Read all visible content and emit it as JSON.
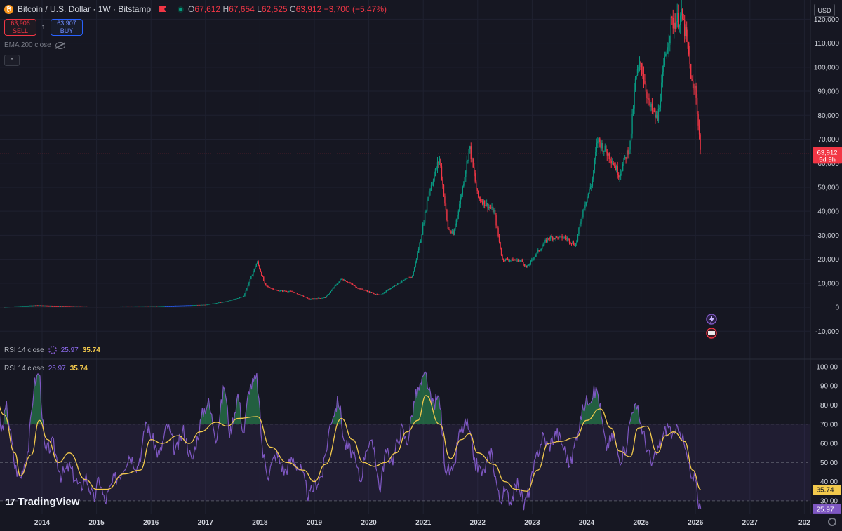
{
  "header": {
    "coin_icon_glyph": "₿",
    "title": "Bitcoin / U.S. Dollar · 1W · Bitstamp",
    "open_label": "O",
    "open": "67,612",
    "high_label": "H",
    "high": "67,654",
    "low_label": "L",
    "low": "62,525",
    "close_label": "C",
    "close": "63,912",
    "change": "−3,700 (−5.47%)"
  },
  "trade": {
    "sell_price": "63,906",
    "sell_label": "SELL",
    "spread": "1",
    "buy_price": "63,907",
    "buy_label": "BUY"
  },
  "ema_label": "EMA 200 close",
  "collapse_glyph": "^",
  "currency": "USD",
  "price_badge": {
    "price": "63,912",
    "countdown": "5d 9h"
  },
  "rsi_header": {
    "label": "RSI 14 close",
    "rsi": "25.97",
    "ma": "35.74"
  },
  "brand": "TradingView",
  "colors": {
    "up": "#089981",
    "down": "#f23645",
    "rsi": "#7e57c2",
    "rsi_ma": "#f2c94c",
    "band": "#7e57c2",
    "price_line": "#f23645"
  },
  "chart_data": [
    {
      "type": "candlestick",
      "title": "Bitcoin / U.S. Dollar · 1W · Bitstamp",
      "x_ticks": [
        "2014",
        "2015",
        "2016",
        "2017",
        "2018",
        "2019",
        "2020",
        "2021",
        "2022",
        "2023",
        "2024",
        "2025",
        "2026",
        "2027",
        "202"
      ],
      "y_ticks": [
        "-10,000",
        "0",
        "10,000",
        "20,000",
        "30,000",
        "40,000",
        "50,000",
        "60,000",
        "70,000",
        "80,000",
        "90,000",
        "100,000",
        "110,000",
        "120,000"
      ],
      "ylim": [
        -14000,
        128000
      ],
      "last_price": 63912,
      "price_path": [
        [
          2013.3,
          120
        ],
        [
          2013.9,
          800
        ],
        [
          2014.2,
          600
        ],
        [
          2015.0,
          250
        ],
        [
          2016.0,
          400
        ],
        [
          2016.5,
          650
        ],
        [
          2017.0,
          1000
        ],
        [
          2017.4,
          2500
        ],
        [
          2017.7,
          4500
        ],
        [
          2017.95,
          19000
        ],
        [
          2018.1,
          9000
        ],
        [
          2018.3,
          7000
        ],
        [
          2018.6,
          6500
        ],
        [
          2018.9,
          3500
        ],
        [
          2019.2,
          4000
        ],
        [
          2019.5,
          12000
        ],
        [
          2019.8,
          8000
        ],
        [
          2020.2,
          5000
        ],
        [
          2020.5,
          9500
        ],
        [
          2020.8,
          13000
        ],
        [
          2020.95,
          28000
        ],
        [
          2021.1,
          48000
        ],
        [
          2021.3,
          62000
        ],
        [
          2021.45,
          33000
        ],
        [
          2021.55,
          30000
        ],
        [
          2021.7,
          47000
        ],
        [
          2021.85,
          67000
        ],
        [
          2022.0,
          46000
        ],
        [
          2022.3,
          40000
        ],
        [
          2022.45,
          20000
        ],
        [
          2022.8,
          19500
        ],
        [
          2022.9,
          16500
        ],
        [
          2023.1,
          23000
        ],
        [
          2023.3,
          29000
        ],
        [
          2023.6,
          29000
        ],
        [
          2023.8,
          26000
        ],
        [
          2023.95,
          42000
        ],
        [
          2024.1,
          52000
        ],
        [
          2024.2,
          70000
        ],
        [
          2024.45,
          62000
        ],
        [
          2024.6,
          55000
        ],
        [
          2024.8,
          68000
        ],
        [
          2024.9,
          95000
        ],
        [
          2025.0,
          102000
        ],
        [
          2025.15,
          84000
        ],
        [
          2025.3,
          78000
        ],
        [
          2025.45,
          105000
        ],
        [
          2025.55,
          118000
        ],
        [
          2025.75,
          121000
        ],
        [
          2025.85,
          110000
        ],
        [
          2025.95,
          90000
        ],
        [
          2026.0,
          92000
        ],
        [
          2026.05,
          76000
        ],
        [
          2026.1,
          63912
        ]
      ]
    },
    {
      "type": "line",
      "title": "RSI 14 close",
      "series": [
        {
          "name": "RSI",
          "last": 25.97
        },
        {
          "name": "MA",
          "last": 35.74
        }
      ],
      "y_ticks": [
        "30.00",
        "40.00",
        "50.00",
        "60.00",
        "70.00",
        "80.00",
        "90.00",
        "100.00"
      ],
      "ylim": [
        23,
        104
      ],
      "bands": [
        30,
        50,
        70
      ],
      "ma_path": [
        [
          2013.0,
          80
        ],
        [
          2013.1,
          89
        ],
        [
          2013.3,
          75
        ],
        [
          2013.5,
          55
        ],
        [
          2013.6,
          43
        ],
        [
          2013.8,
          54
        ],
        [
          2013.95,
          72
        ],
        [
          2014.1,
          62
        ],
        [
          2014.3,
          50
        ],
        [
          2014.5,
          55
        ],
        [
          2014.8,
          41
        ],
        [
          2015.0,
          36
        ],
        [
          2015.2,
          36
        ],
        [
          2015.5,
          44
        ],
        [
          2015.8,
          46
        ],
        [
          2016.0,
          62
        ],
        [
          2016.2,
          60
        ],
        [
          2016.5,
          64
        ],
        [
          2016.7,
          60
        ],
        [
          2016.9,
          66
        ],
        [
          2017.2,
          71
        ],
        [
          2017.4,
          69
        ],
        [
          2017.6,
          73
        ],
        [
          2017.95,
          74
        ],
        [
          2018.2,
          58
        ],
        [
          2018.5,
          50
        ],
        [
          2018.8,
          46
        ],
        [
          2019.0,
          40
        ],
        [
          2019.2,
          49
        ],
        [
          2019.5,
          73
        ],
        [
          2019.7,
          62
        ],
        [
          2019.9,
          50
        ],
        [
          2020.1,
          48
        ],
        [
          2020.3,
          50
        ],
        [
          2020.5,
          55
        ],
        [
          2020.7,
          66
        ],
        [
          2020.9,
          72
        ],
        [
          2021.05,
          85
        ],
        [
          2021.3,
          70
        ],
        [
          2021.5,
          52
        ],
        [
          2021.7,
          62
        ],
        [
          2021.85,
          65
        ],
        [
          2022.0,
          55
        ],
        [
          2022.3,
          49
        ],
        [
          2022.5,
          40
        ],
        [
          2022.7,
          36
        ],
        [
          2022.9,
          35
        ],
        [
          2023.1,
          46
        ],
        [
          2023.3,
          60
        ],
        [
          2023.5,
          61
        ],
        [
          2023.8,
          63
        ],
        [
          2024.0,
          72
        ],
        [
          2024.25,
          78
        ],
        [
          2024.45,
          68
        ],
        [
          2024.6,
          56
        ],
        [
          2024.8,
          53
        ],
        [
          2024.95,
          68
        ],
        [
          2025.1,
          69
        ],
        [
          2025.3,
          55
        ],
        [
          2025.45,
          64
        ],
        [
          2025.6,
          66
        ],
        [
          2025.8,
          61
        ],
        [
          2025.95,
          46
        ],
        [
          2026.1,
          35.74
        ]
      ],
      "rsi_path": [
        [
          2013.0,
          85
        ],
        [
          2013.15,
          97
        ],
        [
          2013.25,
          65
        ],
        [
          2013.35,
          80
        ],
        [
          2013.5,
          48
        ],
        [
          2013.6,
          42
        ],
        [
          2013.75,
          58
        ],
        [
          2013.85,
          90
        ],
        [
          2013.95,
          98
        ],
        [
          2014.05,
          55
        ],
        [
          2014.2,
          60
        ],
        [
          2014.35,
          43
        ],
        [
          2014.5,
          48
        ],
        [
          2014.7,
          36
        ],
        [
          2014.8,
          43
        ],
        [
          2014.95,
          30
        ],
        [
          2015.05,
          42
        ],
        [
          2015.15,
          29
        ],
        [
          2015.3,
          40
        ],
        [
          2015.45,
          45
        ],
        [
          2015.6,
          54
        ],
        [
          2015.75,
          48
        ],
        [
          2015.85,
          59
        ],
        [
          2015.9,
          72
        ],
        [
          2016.0,
          64
        ],
        [
          2016.15,
          53
        ],
        [
          2016.3,
          70
        ],
        [
          2016.45,
          55
        ],
        [
          2016.6,
          67
        ],
        [
          2016.75,
          50
        ],
        [
          2016.95,
          76
        ],
        [
          2017.05,
          82
        ],
        [
          2017.2,
          63
        ],
        [
          2017.35,
          91
        ],
        [
          2017.45,
          64
        ],
        [
          2017.6,
          86
        ],
        [
          2017.7,
          64
        ],
        [
          2017.8,
          89
        ],
        [
          2017.95,
          94
        ],
        [
          2018.05,
          55
        ],
        [
          2018.15,
          44
        ],
        [
          2018.3,
          55
        ],
        [
          2018.45,
          45
        ],
        [
          2018.6,
          52
        ],
        [
          2018.75,
          46
        ],
        [
          2018.9,
          32
        ],
        [
          2019.0,
          38
        ],
        [
          2019.15,
          44
        ],
        [
          2019.3,
          72
        ],
        [
          2019.45,
          83
        ],
        [
          2019.55,
          60
        ],
        [
          2019.7,
          55
        ],
        [
          2019.85,
          40
        ],
        [
          2019.95,
          59
        ],
        [
          2020.1,
          58
        ],
        [
          2020.2,
          35
        ],
        [
          2020.3,
          55
        ],
        [
          2020.45,
          52
        ],
        [
          2020.6,
          68
        ],
        [
          2020.7,
          60
        ],
        [
          2020.85,
          84
        ],
        [
          2020.95,
          90
        ],
        [
          2021.05,
          96
        ],
        [
          2021.15,
          80
        ],
        [
          2021.3,
          84
        ],
        [
          2021.4,
          48
        ],
        [
          2021.55,
          43
        ],
        [
          2021.65,
          64
        ],
        [
          2021.8,
          71
        ],
        [
          2021.95,
          50
        ],
        [
          2022.1,
          44
        ],
        [
          2022.25,
          56
        ],
        [
          2022.4,
          30
        ],
        [
          2022.5,
          35
        ],
        [
          2022.6,
          30
        ],
        [
          2022.75,
          40
        ],
        [
          2022.85,
          27
        ],
        [
          2022.95,
          36
        ],
        [
          2023.1,
          55
        ],
        [
          2023.2,
          64
        ],
        [
          2023.3,
          58
        ],
        [
          2023.45,
          66
        ],
        [
          2023.55,
          60
        ],
        [
          2023.7,
          48
        ],
        [
          2023.8,
          62
        ],
        [
          2023.95,
          80
        ],
        [
          2024.05,
          84
        ],
        [
          2024.2,
          88
        ],
        [
          2024.35,
          58
        ],
        [
          2024.5,
          64
        ],
        [
          2024.6,
          52
        ],
        [
          2024.7,
          55
        ],
        [
          2024.85,
          80
        ],
        [
          2024.95,
          76
        ],
        [
          2025.05,
          64
        ],
        [
          2025.2,
          48
        ],
        [
          2025.35,
          60
        ],
        [
          2025.5,
          70
        ],
        [
          2025.6,
          62
        ],
        [
          2025.7,
          70
        ],
        [
          2025.85,
          52
        ],
        [
          2025.95,
          38
        ],
        [
          2026.0,
          44
        ],
        [
          2026.05,
          30
        ],
        [
          2026.1,
          25.97
        ]
      ]
    }
  ]
}
